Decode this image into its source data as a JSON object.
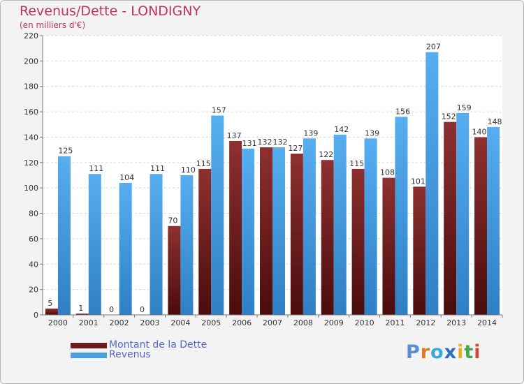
{
  "chart_data": {
    "type": "bar",
    "title": "Revenus/Dette - LONDIGNY",
    "subtitle": "(en milliers d'€)",
    "categories": [
      "2000",
      "2001",
      "2002",
      "2003",
      "2004",
      "2005",
      "2006",
      "2007",
      "2008",
      "2009",
      "2010",
      "2011",
      "2012",
      "2013",
      "2014"
    ],
    "series": [
      {
        "name": "Montant de la Dette",
        "color": "#6e1a1a",
        "values": [
          5,
          1,
          0,
          0,
          70,
          115,
          137,
          132,
          127,
          122,
          115,
          108,
          101,
          152,
          140
        ]
      },
      {
        "name": "Revenus",
        "color": "#4a9fe0",
        "values": [
          125,
          111,
          104,
          111,
          110,
          157,
          131,
          132,
          139,
          142,
          139,
          156,
          207,
          159,
          148
        ]
      }
    ],
    "yticks": [
      "0",
      "20",
      "40",
      "60",
      "80",
      "100",
      "120",
      "140",
      "160",
      "180",
      "200",
      "220"
    ],
    "ylim": [
      0,
      220
    ],
    "grid": true,
    "legend_position": "bottom-left"
  },
  "logo": {
    "letters": [
      {
        "ch": "P",
        "color": "#5a8fd6"
      },
      {
        "ch": "r",
        "color": "#e07a2a"
      },
      {
        "ch": "o",
        "color": "#3aa8d8"
      },
      {
        "ch": "x",
        "color": "#2a6fc2"
      },
      {
        "ch": "i",
        "color": "#e8b020"
      },
      {
        "ch": "t",
        "color": "#3aaa4a"
      },
      {
        "ch": "i",
        "color": "#d24a3a"
      }
    ]
  }
}
